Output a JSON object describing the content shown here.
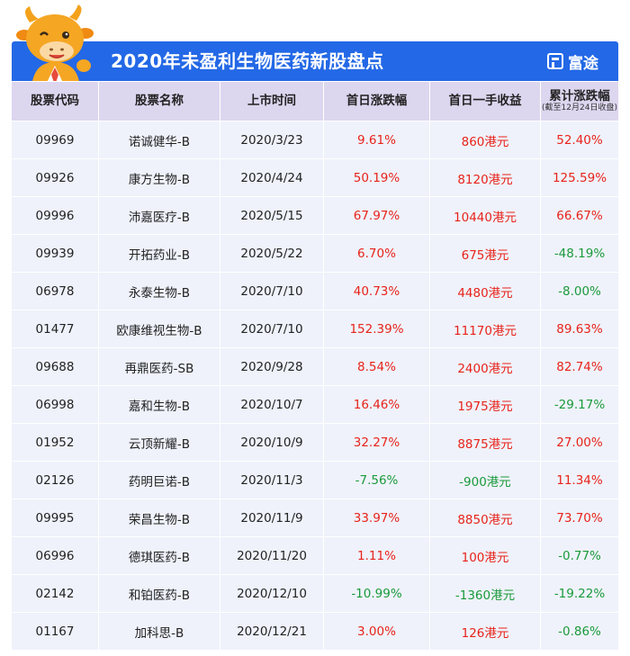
{
  "header": {
    "title": "2020年未盈利生物医药新股盘点",
    "brand": "富途"
  },
  "colors": {
    "header_bg": "#2368e6",
    "positive": "#e8231a",
    "negative": "#1a9a3a"
  },
  "table": {
    "columns": [
      {
        "label": "股票代码",
        "sub": ""
      },
      {
        "label": "股票名称",
        "sub": ""
      },
      {
        "label": "上市时间",
        "sub": ""
      },
      {
        "label": "首日涨跌幅",
        "sub": ""
      },
      {
        "label": "首日一手收益",
        "sub": ""
      },
      {
        "label": "累计涨跌幅",
        "sub": "(截至12月24日收盘)"
      }
    ],
    "rows": [
      [
        "09969",
        "诺诚健华-B",
        "2020/3/23",
        "9.61%",
        "860港元",
        "52.40%"
      ],
      [
        "09926",
        "康方生物-B",
        "2020/4/24",
        "50.19%",
        "8120港元",
        "125.59%"
      ],
      [
        "09996",
        "沛嘉医疗-B",
        "2020/5/15",
        "67.97%",
        "10440港元",
        "66.67%"
      ],
      [
        "09939",
        "开拓药业-B",
        "2020/5/22",
        "6.70%",
        "675港元",
        "-48.19%"
      ],
      [
        "06978",
        "永泰生物-B",
        "2020/7/10",
        "40.73%",
        "4480港元",
        "-8.00%"
      ],
      [
        "01477",
        "欧康维视生物-B",
        "2020/7/10",
        "152.39%",
        "11170港元",
        "89.63%"
      ],
      [
        "09688",
        "再鼎医药-SB",
        "2020/9/28",
        "8.54%",
        "2400港元",
        "82.74%"
      ],
      [
        "06998",
        "嘉和生物-B",
        "2020/10/7",
        "16.46%",
        "1975港元",
        "-29.17%"
      ],
      [
        "01952",
        "云顶新耀-B",
        "2020/10/9",
        "32.27%",
        "8875港元",
        "27.00%"
      ],
      [
        "02126",
        "药明巨诺-B",
        "2020/11/3",
        "-7.56%",
        "-900港元",
        "11.34%"
      ],
      [
        "09995",
        "荣昌生物-B",
        "2020/11/9",
        "33.97%",
        "8850港元",
        "73.70%"
      ],
      [
        "06996",
        "德琪医药-B",
        "2020/11/20",
        "1.11%",
        "100港元",
        "-0.77%"
      ],
      [
        "02142",
        "和铂医药-B",
        "2020/12/10",
        "-10.99%",
        "-1360港元",
        "-19.22%"
      ],
      [
        "01167",
        "加科思-B",
        "2020/12/21",
        "3.00%",
        "126港元",
        "-0.86%"
      ]
    ]
  }
}
